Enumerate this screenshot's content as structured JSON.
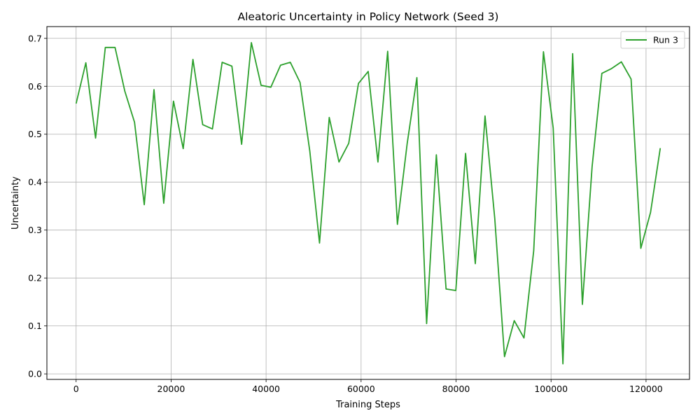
{
  "chart_data": {
    "type": "line",
    "title": "Aleatoric Uncertainty in Policy Network (Seed 3)",
    "xlabel": "Training Steps",
    "ylabel": "Uncertainty",
    "xlim": [
      -6150,
      129150
    ],
    "ylim": [
      -0.0115,
      0.7245
    ],
    "xticks": [
      0,
      20000,
      40000,
      60000,
      80000,
      100000,
      120000
    ],
    "yticks": [
      0.0,
      0.1,
      0.2,
      0.3,
      0.4,
      0.5,
      0.6,
      0.7
    ],
    "grid": true,
    "legend_position": "top-right",
    "series": [
      {
        "name": "Run 3",
        "color": "#2ca02c",
        "x": [
          0,
          2050,
          4100,
          6150,
          8200,
          10250,
          12300,
          14350,
          16400,
          18450,
          20500,
          22550,
          24600,
          26650,
          28700,
          30750,
          32800,
          34850,
          36900,
          38950,
          41000,
          43050,
          45100,
          47150,
          49200,
          51250,
          53300,
          55350,
          57400,
          59450,
          61500,
          63550,
          65600,
          67650,
          69700,
          71750,
          73800,
          75850,
          77900,
          79950,
          82000,
          84050,
          86100,
          88150,
          90200,
          92250,
          94300,
          96350,
          98400,
          100450,
          102500,
          104550,
          106600,
          108650,
          110700,
          112750,
          114800,
          116850,
          118900,
          120950,
          123000
        ],
        "y": [
          0.564,
          0.649,
          0.492,
          0.681,
          0.681,
          0.59,
          0.525,
          0.353,
          0.593,
          0.356,
          0.569,
          0.47,
          0.656,
          0.52,
          0.511,
          0.65,
          0.642,
          0.479,
          0.691,
          0.602,
          0.598,
          0.644,
          0.65,
          0.608,
          0.465,
          0.273,
          0.535,
          0.442,
          0.481,
          0.606,
          0.631,
          0.442,
          0.673,
          0.312,
          0.48,
          0.618,
          0.105,
          0.457,
          0.177,
          0.174,
          0.46,
          0.23,
          0.538,
          0.324,
          0.036,
          0.111,
          0.075,
          0.257,
          0.672,
          0.513,
          0.021,
          0.668,
          0.145,
          0.433,
          0.627,
          0.637,
          0.651,
          0.615,
          0.262,
          0.337,
          0.471
        ]
      }
    ]
  }
}
